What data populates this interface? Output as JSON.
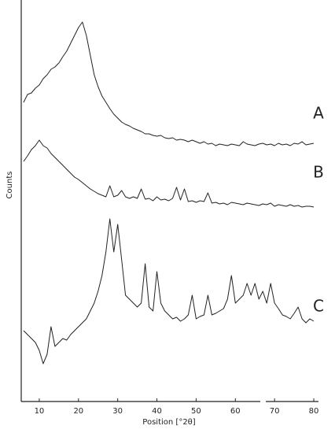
{
  "chart_data": {
    "type": "line",
    "x_label": "Position [°2θ]",
    "y_label": "Counts",
    "x": [
      6,
      7,
      8,
      9,
      10,
      11,
      12,
      13,
      14,
      15,
      16,
      17,
      18,
      19,
      20,
      21,
      22,
      23,
      24,
      25,
      26,
      27,
      28,
      29,
      30,
      31,
      32,
      33,
      34,
      35,
      36,
      37,
      38,
      39,
      40,
      41,
      42,
      43,
      44,
      45,
      46,
      47,
      48,
      49,
      50,
      51,
      52,
      53,
      54,
      55,
      56,
      57,
      58,
      59,
      60,
      61,
      62,
      63,
      64,
      65,
      66,
      67,
      68,
      69,
      70,
      71,
      72,
      73,
      74,
      75,
      76,
      77,
      78,
      79,
      80
    ],
    "series": [
      {
        "name": "A",
        "color": "#222222",
        "values": [
          380,
          390,
          392,
          398,
          402,
          410,
          415,
          422,
          425,
          430,
          438,
          445,
          455,
          465,
          475,
          482,
          465,
          440,
          415,
          400,
          388,
          380,
          372,
          365,
          360,
          355,
          352,
          350,
          347,
          345,
          343,
          340,
          340,
          338,
          337,
          338,
          335,
          334,
          335,
          332,
          333,
          332,
          330,
          332,
          330,
          328,
          330,
          327,
          328,
          325,
          327,
          326,
          325,
          327,
          326,
          325,
          330,
          327,
          326,
          325,
          327,
          328,
          326,
          327,
          325,
          328,
          326,
          327,
          325,
          328,
          327,
          330,
          326,
          327,
          328
        ]
      },
      {
        "name": "B",
        "color": "#222222",
        "values": [
          305,
          312,
          320,
          325,
          332,
          325,
          322,
          315,
          310,
          305,
          300,
          295,
          290,
          285,
          282,
          278,
          274,
          270,
          267,
          264,
          262,
          260,
          274,
          260,
          262,
          268,
          260,
          258,
          260,
          258,
          270,
          257,
          258,
          255,
          260,
          256,
          257,
          255,
          258,
          272,
          256,
          270,
          254,
          255,
          253,
          255,
          254,
          265,
          252,
          253,
          251,
          252,
          250,
          253,
          252,
          251,
          250,
          252,
          251,
          250,
          249,
          251,
          250,
          252,
          248,
          250,
          249,
          248,
          250,
          248,
          249,
          247,
          248,
          248,
          247
        ]
      },
      {
        "name": "C",
        "color": "#222222",
        "values": [
          90,
          85,
          80,
          75,
          65,
          48,
          60,
          95,
          70,
          75,
          80,
          78,
          85,
          90,
          95,
          100,
          105,
          115,
          125,
          140,
          160,
          190,
          232,
          190,
          225,
          180,
          135,
          130,
          125,
          120,
          125,
          175,
          120,
          115,
          165,
          125,
          115,
          110,
          105,
          107,
          102,
          105,
          110,
          135,
          105,
          108,
          110,
          135,
          110,
          112,
          115,
          118,
          130,
          160,
          125,
          130,
          135,
          150,
          135,
          150,
          130,
          140,
          125,
          150,
          125,
          118,
          110,
          108,
          105,
          112,
          120,
          105,
          100,
          105,
          102
        ]
      }
    ],
    "xlim": [
      5.4,
      81.2
    ],
    "xticks": [
      10,
      20,
      30,
      40,
      50,
      60,
      70,
      80
    ],
    "ylim": [
      0,
      510
    ]
  }
}
